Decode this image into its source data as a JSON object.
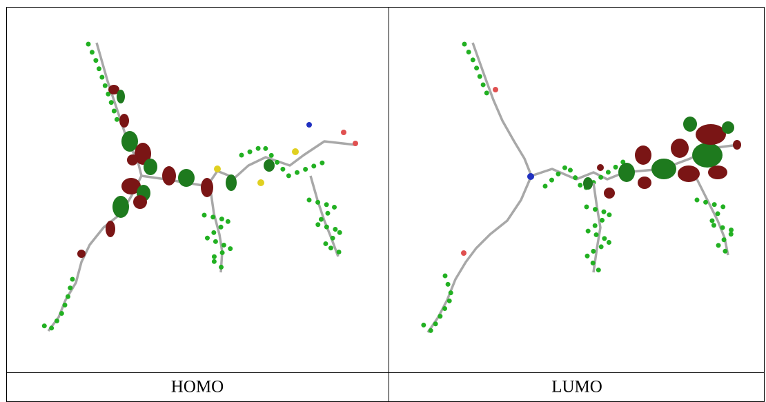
{
  "table": {
    "rows": [
      [
        "HOMO",
        "LUMO"
      ]
    ]
  }
}
